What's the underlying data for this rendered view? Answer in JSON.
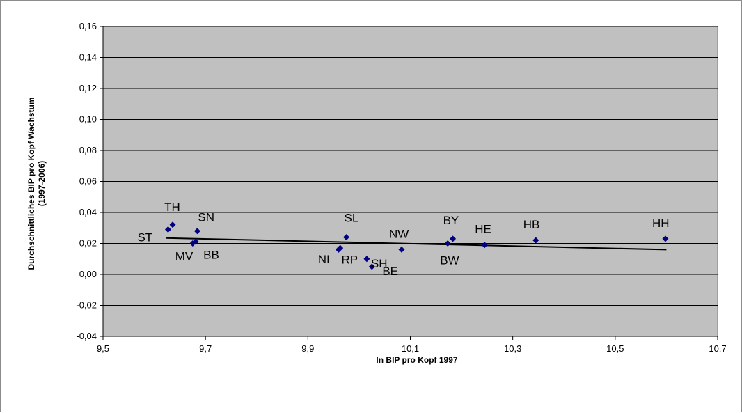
{
  "chart_data": {
    "type": "scatter",
    "title": "",
    "xlabel": "ln BIP pro Kopf 1997",
    "ylabel": "Durchschnittliches BIP pro Kopf Wachstum",
    "ylabel_line2": "(1997-2006)",
    "xlim": [
      9.5,
      10.7
    ],
    "ylim": [
      -0.04,
      0.16
    ],
    "x_ticks": [
      "9,5",
      "9,7",
      "9,9",
      "10,1",
      "10,3",
      "10,5",
      "10,7"
    ],
    "y_ticks": [
      "-0,04",
      "-0,02",
      "0,00",
      "0,02",
      "0,04",
      "0,06",
      "0,08",
      "0,10",
      "0,12",
      "0,14",
      "0,16"
    ],
    "grid": true,
    "legend": "none",
    "colors": {
      "plot_bg": "#c0c0c0",
      "marker": "#000080",
      "trend": "#000000",
      "grid": "#000000"
    },
    "points": [
      {
        "label": "TH",
        "x": 9.636,
        "y": 0.032
      },
      {
        "label": "ST",
        "x": 9.627,
        "y": 0.029
      },
      {
        "label": "SN",
        "x": 9.684,
        "y": 0.028
      },
      {
        "label": "MV",
        "x": 9.675,
        "y": 0.02
      },
      {
        "label": "BB",
        "x": 9.681,
        "y": 0.021
      },
      {
        "label": "SL",
        "x": 9.975,
        "y": 0.024
      },
      {
        "label": "NI",
        "x": 9.963,
        "y": 0.017
      },
      {
        "label": "RP",
        "x": 9.96,
        "y": 0.016
      },
      {
        "label": "SH",
        "x": 10.015,
        "y": 0.01
      },
      {
        "label": "BE",
        "x": 10.025,
        "y": 0.005
      },
      {
        "label": "NW",
        "x": 10.083,
        "y": 0.016
      },
      {
        "label": "BY",
        "x": 10.183,
        "y": 0.023
      },
      {
        "label": "BW",
        "x": 10.173,
        "y": 0.02
      },
      {
        "label": "HE",
        "x": 10.245,
        "y": 0.019
      },
      {
        "label": "HB",
        "x": 10.345,
        "y": 0.022
      },
      {
        "label": "HH",
        "x": 10.598,
        "y": 0.023
      }
    ],
    "trendline": {
      "x": [
        9.6225,
        10.6
      ],
      "y": [
        0.0235,
        0.016
      ]
    }
  }
}
